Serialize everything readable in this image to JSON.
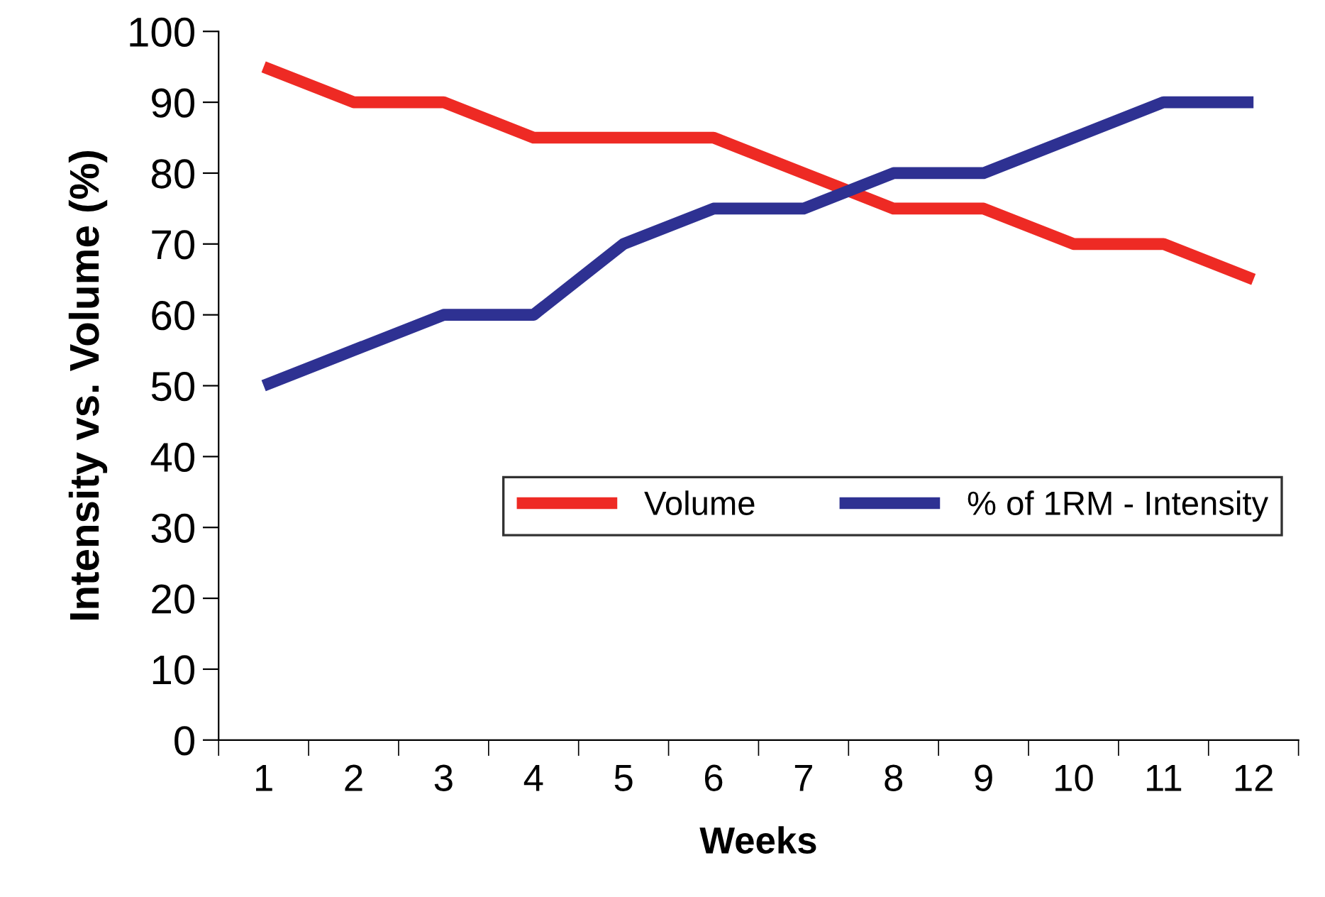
{
  "chart_data": {
    "type": "line",
    "xlabel": "Weeks",
    "ylabel": "Intensity vs. Volume (%)",
    "categories": [
      "1",
      "2",
      "3",
      "4",
      "5",
      "6",
      "7",
      "8",
      "9",
      "10",
      "11",
      "12"
    ],
    "series": [
      {
        "name": "Volume",
        "color": "#ee2a24",
        "values": [
          95,
          90,
          90,
          85,
          85,
          85,
          80,
          75,
          75,
          70,
          70,
          65
        ]
      },
      {
        "name": "% of 1RM - Intensity",
        "color": "#2e3192",
        "values": [
          50,
          55,
          60,
          60,
          70,
          75,
          75,
          80,
          80,
          85,
          90,
          90
        ]
      }
    ],
    "ylim": [
      0,
      100
    ],
    "yticks": [
      0,
      10,
      20,
      30,
      40,
      50,
      60,
      70,
      80,
      90,
      100
    ],
    "grid": false,
    "legend": "right",
    "marker": "none",
    "line_style": "solid"
  }
}
